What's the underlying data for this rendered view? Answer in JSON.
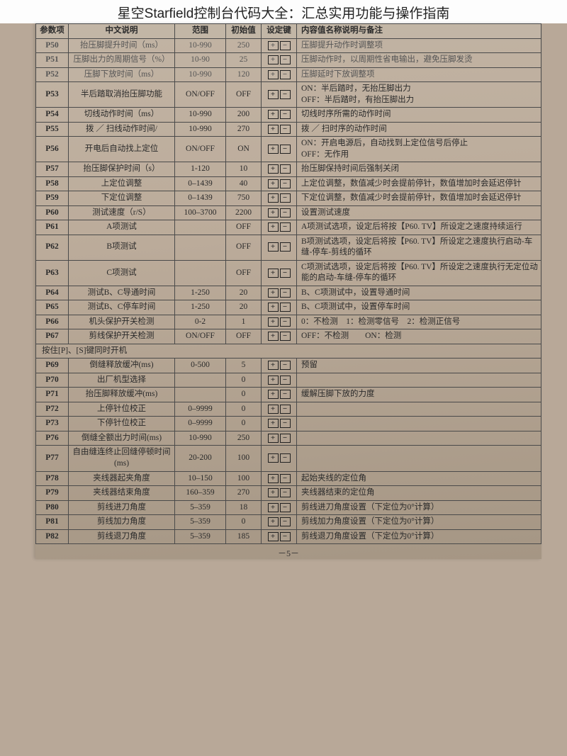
{
  "pageTitle": "星空Starfield控制台代码大全：汇总实用功能与操作指南",
  "pageNumber": "－5－",
  "headers": {
    "param": "参数项",
    "desc": "中文说明",
    "range": "范围",
    "init": "初始值",
    "key": "设定键",
    "note": "内容值名称说明与备注"
  },
  "sectionNote": "按住[P]、[S]键同时开机",
  "rows": [
    {
      "p": "P50",
      "desc": "抬压脚提升时间（ms）",
      "range": "10-990",
      "init": "250",
      "note": "压脚提升动作时调整项",
      "faded": true
    },
    {
      "p": "P51",
      "desc": "压脚出力的周期信号（%）",
      "range": "10-90",
      "init": "25",
      "note": "压脚动作时，以周期性省电输出，避免压脚发烫",
      "faded": true
    },
    {
      "p": "P52",
      "desc": "压脚下放时间（ms）",
      "range": "10-990",
      "init": "120",
      "note": "压脚延时下放调整项",
      "faded": true
    },
    {
      "p": "P53",
      "desc": "半后踏取消抬压脚功能",
      "range": "ON/OFF",
      "init": "OFF",
      "note": "ON：半后踏时，无抬压脚出力\nOFF：半后踏时，有抬压脚出力"
    },
    {
      "p": "P54",
      "desc": "切线动作时间（ms）",
      "range": "10-990",
      "init": "200",
      "note": "切线时序所需的动作时间"
    },
    {
      "p": "P55",
      "desc": "拨 ／ 扫线动作时间/",
      "range": "10-990",
      "init": "270",
      "note": "拨 ／ 扫时序的动作时间"
    },
    {
      "p": "P56",
      "desc": "开电后自动找上定位",
      "range": "ON/OFF",
      "init": "ON",
      "note": "ON：开启电源后，自动找到上定位信号后停止\nOFF：无作用"
    },
    {
      "p": "P57",
      "desc": "抬压脚保护时间（s）",
      "range": "1-120",
      "init": "10",
      "note": "抬压脚保持时间后强制关闭"
    },
    {
      "p": "P58",
      "desc": "上定位调整",
      "range": "0–1439",
      "init": "40",
      "note": "上定位调整，数值减少时会提前停针，数值增加时会延迟停针"
    },
    {
      "p": "P59",
      "desc": "下定位调整",
      "range": "0–1439",
      "init": "750",
      "note": "下定位调整，数值减少时会提前停针，数值增加时会延迟停针"
    },
    {
      "p": "P60",
      "desc": "测试速度（r/S）",
      "range": "100–3700",
      "init": "2200",
      "note": "设置测试速度"
    },
    {
      "p": "P61",
      "desc": "A项测试",
      "range": "",
      "init": "OFF",
      "note": "A项测试选项，设定后将按【P60. TV】所设定之速度持续运行"
    },
    {
      "p": "P62",
      "desc": "B项测试",
      "range": "",
      "init": "OFF",
      "note": "B项测试选项，设定后将按【P60. TV】所设定之速度执行启动-车缝-停车-剪线的循环"
    },
    {
      "p": "P63",
      "desc": "C项测试",
      "range": "",
      "init": "OFF",
      "note": "C项测试选项，设定后将按【P60. TV】所设定之速度执行无定位动能的启动-车缝-停车的循环"
    },
    {
      "p": "P64",
      "desc": "测试B、C导通时间",
      "range": "1-250",
      "init": "20",
      "note": "B、C项测试中，设置导通时间"
    },
    {
      "p": "P65",
      "desc": "测试B、C停车时间",
      "range": "1-250",
      "init": "20",
      "note": "B、C项测试中，设置停车时间"
    },
    {
      "p": "P66",
      "desc": "机头保护开关检测",
      "range": "0-2",
      "init": "1",
      "note": "0：不检测　1：检测零信号　2：检测正信号"
    },
    {
      "p": "P67",
      "desc": "剪线保护开关检测",
      "range": "ON/OFF",
      "init": "OFF",
      "note": "OFF：不检测　　ON：检测"
    },
    {
      "section": true
    },
    {
      "p": "P69",
      "desc": "倒缝释放缓冲(ms)",
      "range": "0-500",
      "init": "5",
      "note": "预留"
    },
    {
      "p": "P70",
      "desc": "出厂机型选择",
      "range": "",
      "init": "0",
      "note": ""
    },
    {
      "p": "P71",
      "desc": "抬压脚释放缓冲(ms)",
      "range": "",
      "init": "0",
      "note": "缓解压脚下放的力度"
    },
    {
      "p": "P72",
      "desc": "上停针位校正",
      "range": "0–9999",
      "init": "0",
      "note": ""
    },
    {
      "p": "P73",
      "desc": "下停针位校正",
      "range": "0–9999",
      "init": "0",
      "note": ""
    },
    {
      "p": "P76",
      "desc": "倒缝全额出力时间(ms)",
      "range": "10-990",
      "init": "250",
      "note": ""
    },
    {
      "p": "P77",
      "desc": "自由缝连终止回缝停顿时间(ms)",
      "range": "20-200",
      "init": "100",
      "note": ""
    },
    {
      "p": "P78",
      "desc": "夹线器起夹角度",
      "range": "10–150",
      "init": "100",
      "note": "起始夹线的定位角"
    },
    {
      "p": "P79",
      "desc": "夹线器结束角度",
      "range": "160–359",
      "init": "270",
      "note": "夹线器结束的定位角"
    },
    {
      "p": "P80",
      "desc": "剪线进刀角度",
      "range": "5–359",
      "init": "18",
      "note": "剪线进刀角度设置（下定位为0°计算）"
    },
    {
      "p": "P81",
      "desc": "剪线加力角度",
      "range": "5–359",
      "init": "0",
      "note": "剪线加力角度设置（下定位为0°计算）"
    },
    {
      "p": "P82",
      "desc": "剪线退刀角度",
      "range": "5–359",
      "init": "185",
      "note": "剪线退刀角度设置（下定位为0°计算）"
    }
  ]
}
